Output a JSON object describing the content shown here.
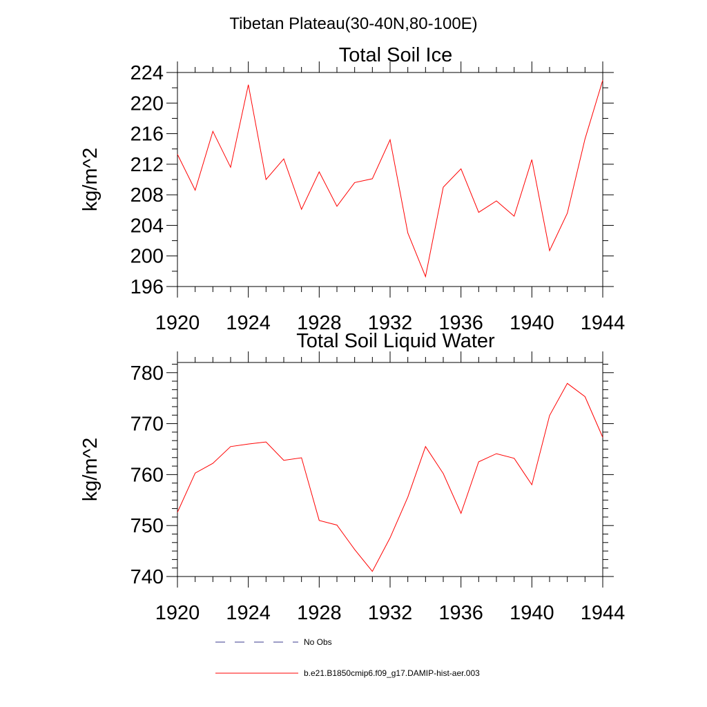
{
  "figure": {
    "suptitle": "Tibetan Plateau(30-40N,80-100E)"
  },
  "chart_data": [
    {
      "type": "line",
      "title": "Total Soil Ice",
      "xlabel": "",
      "ylabel": "kg/m^2",
      "xlim": [
        1920,
        1944
      ],
      "ylim": [
        196,
        224
      ],
      "xticks": [
        1920,
        1924,
        1928,
        1932,
        1936,
        1940,
        1944
      ],
      "yticks": [
        196,
        200,
        204,
        208,
        212,
        216,
        220,
        224
      ],
      "grid": false,
      "series": [
        {
          "name": "b.e21.B1850cmip6.f09_g17.DAMIP-hist-aer.003",
          "color": "#ff0000",
          "x": [
            1920,
            1921,
            1922,
            1923,
            1924,
            1925,
            1926,
            1927,
            1928,
            1929,
            1930,
            1931,
            1932,
            1933,
            1934,
            1935,
            1936,
            1937,
            1938,
            1939,
            1940,
            1941,
            1942,
            1943,
            1944
          ],
          "y": [
            213.3,
            208.6,
            216.3,
            211.6,
            222.4,
            210.0,
            212.7,
            206.1,
            211.0,
            206.5,
            209.6,
            210.1,
            215.2,
            203.0,
            197.3,
            209.0,
            211.4,
            205.7,
            207.2,
            205.2,
            212.6,
            200.7,
            205.6,
            215.3,
            223.0
          ]
        }
      ]
    },
    {
      "type": "line",
      "title": "Total Soil Liquid Water",
      "xlabel": "",
      "ylabel": "kg/m^2",
      "xlim": [
        1920,
        1944
      ],
      "ylim": [
        740,
        782
      ],
      "xticks": [
        1920,
        1924,
        1928,
        1932,
        1936,
        1940,
        1944
      ],
      "yticks": [
        740,
        750,
        760,
        770,
        780
      ],
      "grid": false,
      "series": [
        {
          "name": "b.e21.B1850cmip6.f09_g17.DAMIP-hist-aer.003",
          "color": "#ff0000",
          "x": [
            1920,
            1921,
            1922,
            1923,
            1924,
            1925,
            1926,
            1927,
            1928,
            1929,
            1930,
            1931,
            1932,
            1933,
            1934,
            1935,
            1936,
            1937,
            1938,
            1939,
            1940,
            1941,
            1942,
            1943,
            1944
          ],
          "y": [
            752.6,
            760.3,
            762.2,
            765.5,
            766.0,
            766.4,
            762.8,
            763.3,
            751.0,
            750.1,
            745.3,
            741.0,
            747.6,
            755.6,
            765.5,
            760.2,
            752.4,
            762.5,
            764.1,
            763.2,
            758.0,
            771.6,
            777.9,
            775.3,
            767.3
          ]
        }
      ]
    }
  ],
  "legend": {
    "placement": "bottom",
    "items": [
      {
        "label": "No Obs",
        "color": "#3a3a8c",
        "style": "dashed"
      },
      {
        "label": "b.e21.B1850cmip6.f09_g17.DAMIP-hist-aer.003",
        "color": "#ff0000",
        "style": "solid"
      }
    ]
  }
}
